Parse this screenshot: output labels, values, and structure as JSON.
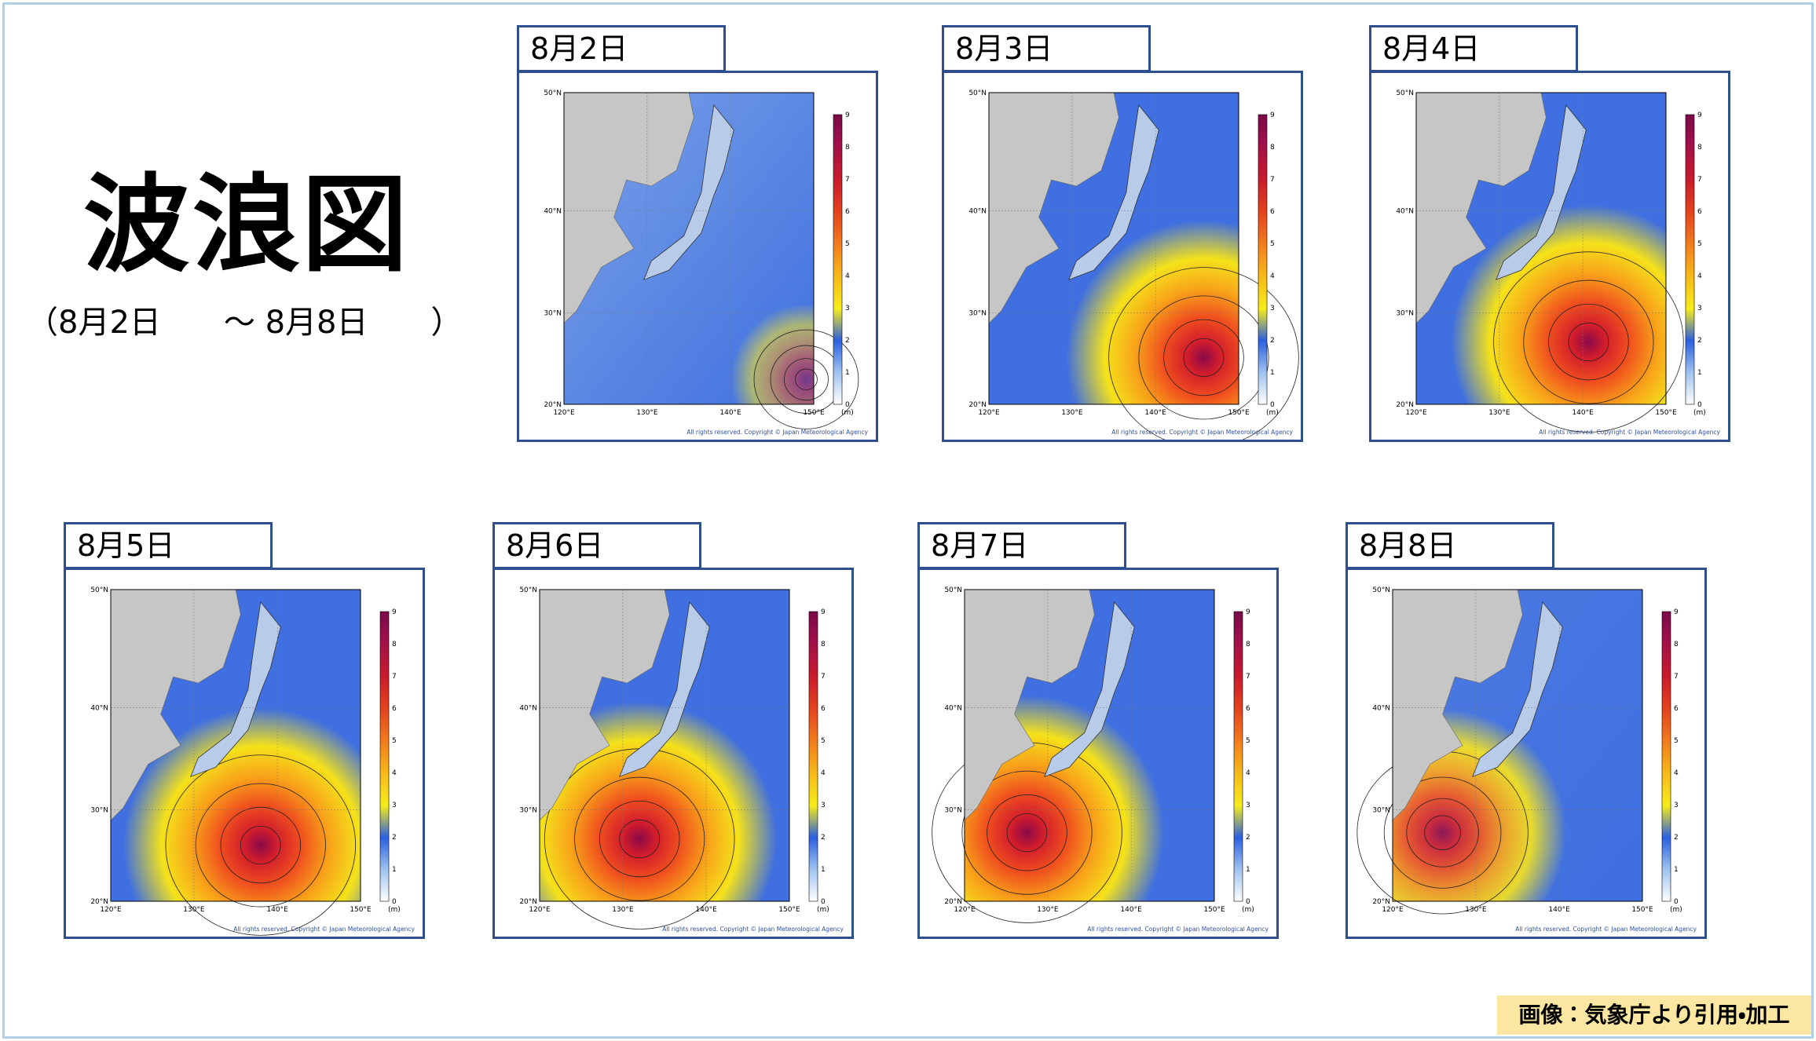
{
  "title": "波浪図",
  "period": "（8月2日　　～ 8月8日　　）",
  "panels": [
    {
      "label": "8月2日"
    },
    {
      "label": "8月3日"
    },
    {
      "label": "8月4日"
    },
    {
      "label": "8月5日"
    },
    {
      "label": "8月6日"
    },
    {
      "label": "8月7日"
    },
    {
      "label": "8月8日"
    }
  ],
  "map": {
    "lat_labels": [
      "50°N",
      "40°N",
      "30°N",
      "20°N"
    ],
    "lon_labels": [
      "120°E",
      "130°E",
      "140°E",
      "150°E"
    ],
    "colorbar_ticks": [
      0,
      1,
      2,
      3,
      4,
      5,
      6,
      7,
      8,
      9
    ],
    "unit": "(m)",
    "copyright": "All rights reserved. Copyright © Japan Meteorological Agency"
  },
  "credit": "画像：気象庁より引用・加工"
}
